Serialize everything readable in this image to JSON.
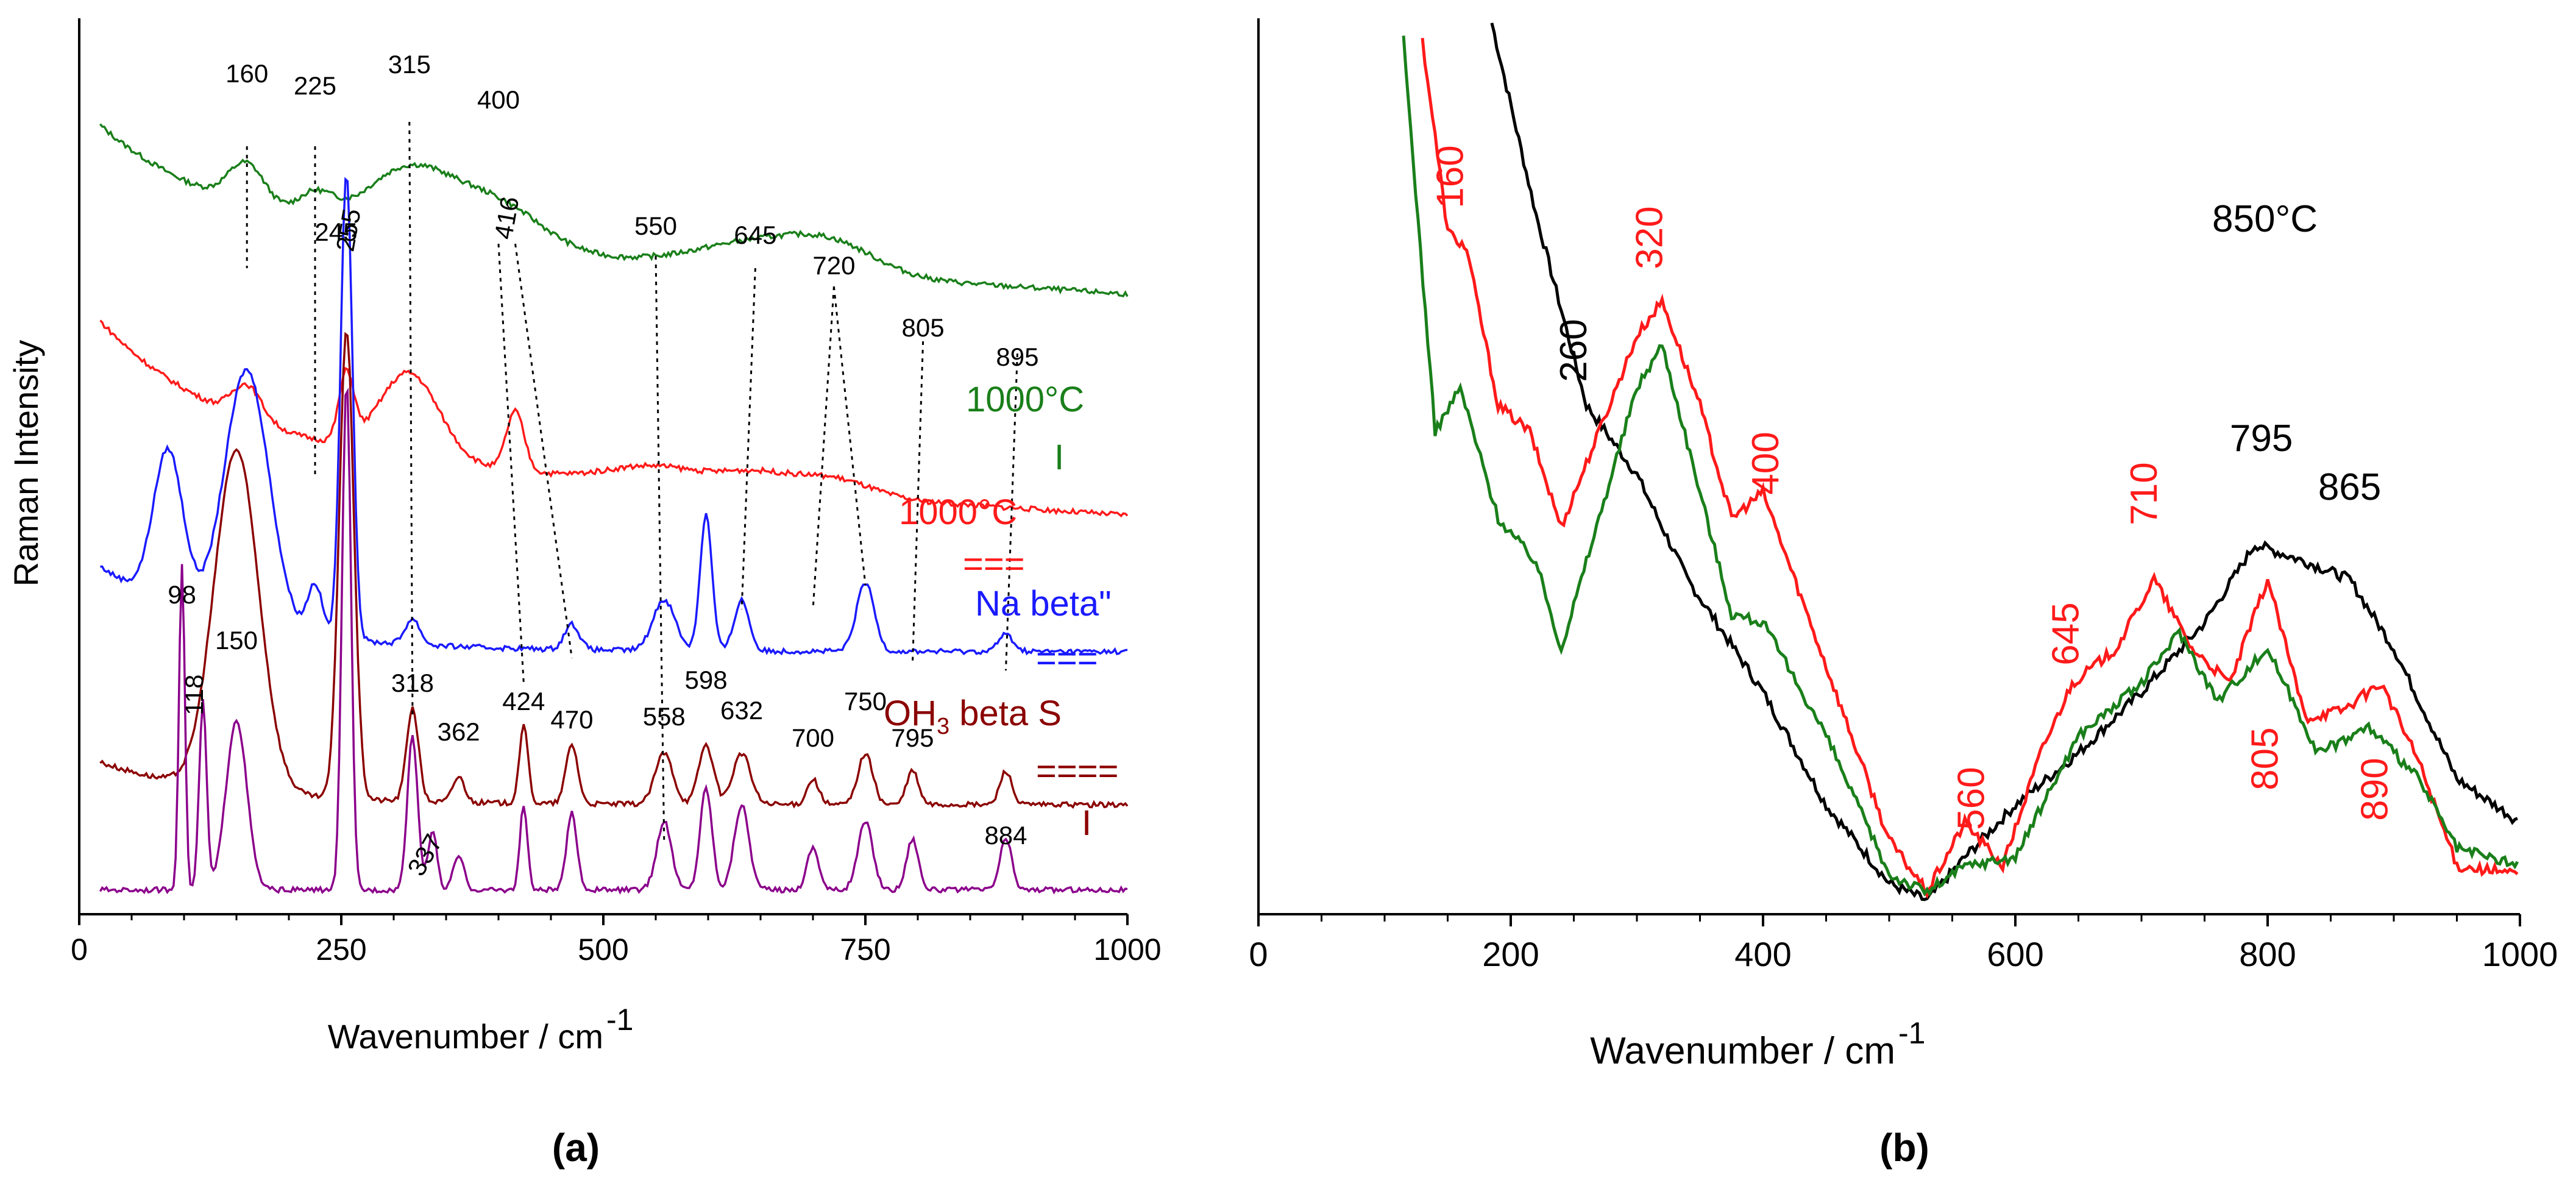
{
  "colors": {
    "green": "#1a7f1a",
    "red": "#ff1a1a",
    "blue": "#1a1aff",
    "darkred": "#8b0000",
    "purple": "#8b008b",
    "black": "#000000"
  },
  "figure": {
    "caption_a": "(a)",
    "caption_b": "(b)"
  },
  "chart_data": [
    {
      "panel": "a",
      "type": "line",
      "xlabel": "Wavenumber / cm",
      "xlabel_sup": "-1",
      "ylabel": "Raman  Intensity",
      "xlim": [
        0,
        1000
      ],
      "xticks": [
        0,
        250,
        500,
        750,
        1000
      ],
      "yticks": false,
      "grid": false,
      "series_labels": [
        {
          "text": "1000°C",
          "color": "green"
        },
        {
          "text": "I",
          "color": "green"
        },
        {
          "text": "1000°C",
          "color": "red"
        },
        {
          "text": "===",
          "color": "red"
        },
        {
          "text": "Na beta\"",
          "color": "blue"
        },
        {
          "text": "===",
          "color": "blue"
        },
        {
          "text": "OH",
          "sub": "3",
          "rest": " beta S",
          "color": "darkred"
        },
        {
          "text": "====",
          "color": "darkred"
        },
        {
          "text": "I",
          "color": "darkred"
        }
      ],
      "peak_labels": [
        "160",
        "225",
        "315",
        "400",
        "245",
        "255",
        "416",
        "550",
        "645",
        "720",
        "805",
        "895",
        "98",
        "150",
        "118",
        "318",
        "362",
        "424",
        "470",
        "558",
        "598",
        "632",
        "700",
        "750",
        "795",
        "884",
        "337"
      ],
      "series": [
        {
          "color": "green",
          "offset": 0.78,
          "peaks": [
            [
              160,
              0.05,
              25
            ],
            [
              225,
              0.03,
              25
            ],
            [
              315,
              0.08,
              60
            ],
            [
              400,
              0.05,
              60
            ],
            [
              645,
              0.03,
              80
            ],
            [
              720,
              0.03,
              60
            ]
          ],
          "base": 0.12
        },
        {
          "color": "red",
          "offset": 0.52,
          "peaks": [
            [
              160,
              0.04,
              20
            ],
            [
              255,
              0.08,
              10
            ],
            [
              315,
              0.1,
              40
            ],
            [
              416,
              0.07,
              12
            ],
            [
              550,
              0.02,
              60
            ],
            [
              645,
              0.02,
              50
            ],
            [
              720,
              0.02,
              50
            ]
          ],
          "base": 0.15
        },
        {
          "color": "blue",
          "offset": 0.28,
          "peaks": [
            [
              85,
              0.18,
              20
            ],
            [
              160,
              0.3,
              30
            ],
            [
              225,
              0.06,
              10
            ],
            [
              255,
              0.55,
              8
            ],
            [
              318,
              0.03,
              10
            ],
            [
              470,
              0.03,
              10
            ],
            [
              558,
              0.06,
              15
            ],
            [
              598,
              0.16,
              8
            ],
            [
              632,
              0.06,
              10
            ],
            [
              750,
              0.08,
              12
            ],
            [
              884,
              0.02,
              10
            ]
          ],
          "base": 0.1
        },
        {
          "color": "darkred",
          "offset": 0.1,
          "peaks": [
            [
              150,
              0.4,
              30
            ],
            [
              255,
              0.55,
              10
            ],
            [
              318,
              0.11,
              8
            ],
            [
              362,
              0.03,
              8
            ],
            [
              424,
              0.09,
              6
            ],
            [
              470,
              0.07,
              8
            ],
            [
              558,
              0.06,
              12
            ],
            [
              598,
              0.07,
              10
            ],
            [
              632,
              0.06,
              12
            ],
            [
              700,
              0.03,
              8
            ],
            [
              750,
              0.06,
              10
            ],
            [
              795,
              0.04,
              8
            ],
            [
              884,
              0.04,
              8
            ]
          ],
          "base": 0.05
        },
        {
          "color": "purple",
          "offset": 0.0,
          "peaks": [
            [
              98,
              0.38,
              4
            ],
            [
              118,
              0.22,
              5
            ],
            [
              150,
              0.2,
              14
            ],
            [
              255,
              0.6,
              6
            ],
            [
              318,
              0.18,
              7
            ],
            [
              337,
              0.07,
              6
            ],
            [
              362,
              0.04,
              7
            ],
            [
              424,
              0.1,
              5
            ],
            [
              470,
              0.09,
              7
            ],
            [
              558,
              0.08,
              10
            ],
            [
              598,
              0.12,
              8
            ],
            [
              632,
              0.1,
              10
            ],
            [
              700,
              0.05,
              8
            ],
            [
              750,
              0.08,
              10
            ],
            [
              795,
              0.06,
              8
            ],
            [
              884,
              0.06,
              8
            ]
          ],
          "base": 0.0
        }
      ]
    },
    {
      "panel": "b",
      "type": "line",
      "xlabel": "Wavenumber / cm",
      "xlabel_sup": "-1",
      "xlim": [
        0,
        1000
      ],
      "xticks": [
        0,
        200,
        400,
        600,
        800,
        1000
      ],
      "yticks": false,
      "grid": false,
      "annotation": "850°C",
      "labels_black": [
        "260",
        "795",
        "865"
      ],
      "labels_red": [
        "160",
        "320",
        "400",
        "560",
        "645",
        "710",
        "805",
        "890"
      ],
      "series": [
        {
          "color": "black",
          "start": 185,
          "points": [
            [
              185,
              1.02
            ],
            [
              220,
              0.8
            ],
            [
              260,
              0.58
            ],
            [
              300,
              0.5
            ],
            [
              340,
              0.38
            ],
            [
              400,
              0.25
            ],
            [
              450,
              0.12
            ],
            [
              500,
              0.03
            ],
            [
              530,
              0.01
            ],
            [
              560,
              0.06
            ],
            [
              600,
              0.12
            ],
            [
              650,
              0.18
            ],
            [
              700,
              0.25
            ],
            [
              750,
              0.33
            ],
            [
              790,
              0.42
            ],
            [
              830,
              0.4
            ],
            [
              865,
              0.38
            ],
            [
              900,
              0.3
            ],
            [
              950,
              0.15
            ],
            [
              1000,
              0.1
            ]
          ]
        },
        {
          "color": "red",
          "start": 130,
          "points": [
            [
              130,
              1.0
            ],
            [
              150,
              0.78
            ],
            [
              165,
              0.76
            ],
            [
              190,
              0.58
            ],
            [
              215,
              0.55
            ],
            [
              240,
              0.44
            ],
            [
              270,
              0.55
            ],
            [
              300,
              0.66
            ],
            [
              320,
              0.7
            ],
            [
              350,
              0.58
            ],
            [
              375,
              0.45
            ],
            [
              400,
              0.48
            ],
            [
              430,
              0.36
            ],
            [
              470,
              0.2
            ],
            [
              500,
              0.08
            ],
            [
              530,
              0.02
            ],
            [
              560,
              0.1
            ],
            [
              590,
              0.05
            ],
            [
              620,
              0.18
            ],
            [
              645,
              0.26
            ],
            [
              680,
              0.3
            ],
            [
              710,
              0.38
            ],
            [
              740,
              0.3
            ],
            [
              770,
              0.26
            ],
            [
              800,
              0.38
            ],
            [
              830,
              0.22
            ],
            [
              860,
              0.23
            ],
            [
              890,
              0.26
            ],
            [
              920,
              0.17
            ],
            [
              950,
              0.05
            ],
            [
              1000,
              0.04
            ]
          ]
        },
        {
          "color": "green",
          "start": 115,
          "points": [
            [
              115,
              1.0
            ],
            [
              140,
              0.55
            ],
            [
              160,
              0.6
            ],
            [
              190,
              0.45
            ],
            [
              220,
              0.4
            ],
            [
              240,
              0.3
            ],
            [
              270,
              0.45
            ],
            [
              300,
              0.6
            ],
            [
              320,
              0.65
            ],
            [
              350,
              0.48
            ],
            [
              375,
              0.34
            ],
            [
              400,
              0.33
            ],
            [
              450,
              0.2
            ],
            [
              500,
              0.04
            ],
            [
              530,
              0.02
            ],
            [
              560,
              0.05
            ],
            [
              600,
              0.06
            ],
            [
              650,
              0.2
            ],
            [
              700,
              0.26
            ],
            [
              730,
              0.32
            ],
            [
              760,
              0.24
            ],
            [
              800,
              0.3
            ],
            [
              840,
              0.18
            ],
            [
              880,
              0.21
            ],
            [
              920,
              0.15
            ],
            [
              950,
              0.07
            ],
            [
              1000,
              0.05
            ]
          ]
        }
      ]
    }
  ]
}
